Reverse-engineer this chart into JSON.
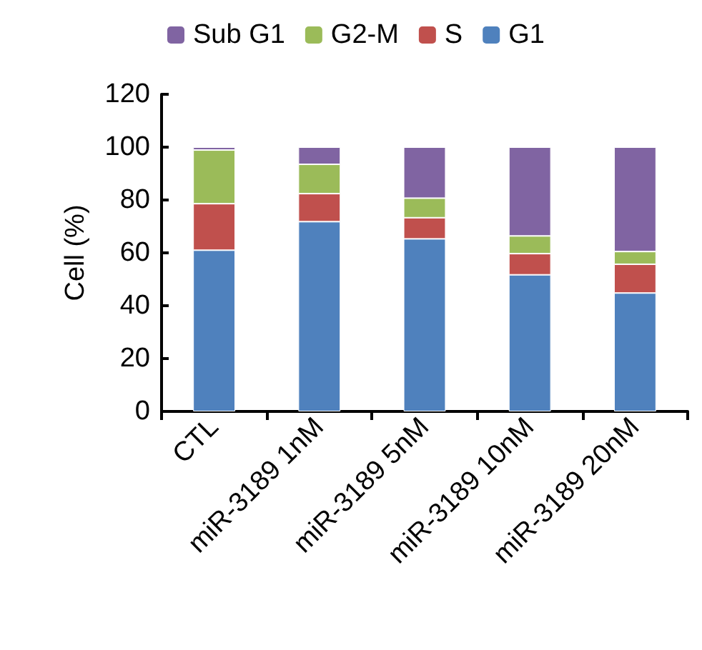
{
  "chart_data": {
    "type": "bar",
    "stacked": true,
    "ylabel": "Cell (%)",
    "categories": [
      "CTL",
      "miR-3189 1nM",
      "miR-3189 5nM",
      "miR-3189 10nM",
      "miR-3189 20nM"
    ],
    "series": [
      {
        "name": "G1",
        "color": "#4f81bd",
        "values": [
          61,
          71.8,
          65.3,
          51.7,
          44.8
        ]
      },
      {
        "name": "S",
        "color": "#c0504d",
        "values": [
          17.6,
          10.6,
          8,
          8,
          10.9
        ]
      },
      {
        "name": "G2-M",
        "color": "#9bbb59",
        "values": [
          20.3,
          11.1,
          7.4,
          6.7,
          4.8
        ]
      },
      {
        "name": "Sub G1",
        "color": "#8064a2",
        "values": [
          1.1,
          6.5,
          19.3,
          33.6,
          39.5
        ]
      }
    ],
    "ylim": [
      0,
      120
    ],
    "yticks": [
      0,
      20,
      40,
      60,
      80,
      100,
      120
    ],
    "grid": false,
    "legend": "top"
  }
}
